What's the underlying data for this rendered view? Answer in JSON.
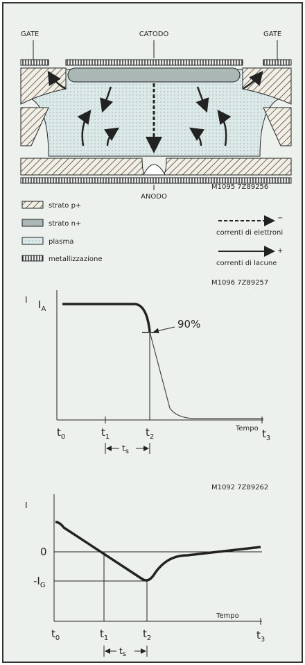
{
  "structure": {
    "gate_left": "GATE",
    "cathode": "CATODO",
    "gate_right": "GATE",
    "anode": "ANODO",
    "code": "M1095 7Z89256"
  },
  "legend": {
    "p_layer": "strato p+",
    "n_layer": "strato n+",
    "plasma": "plasma",
    "metal": "metallizzazione",
    "electrons": "correnti di elettroni",
    "electrons_sign": "−",
    "holes": "correnti di lacune",
    "holes_sign": "+"
  },
  "plot1": {
    "code": "M1096 7Z89257",
    "y_label": "I",
    "level": {
      "base": "I",
      "sub": "A"
    },
    "annotation": "90%",
    "x_title": "Tempo",
    "x_labels": [
      {
        "base": "t",
        "sub": "0"
      },
      {
        "base": "t",
        "sub": "1"
      },
      {
        "base": "t",
        "sub": "2"
      },
      {
        "base": "t",
        "sub": "3"
      }
    ],
    "interval": {
      "base": "t",
      "sub": "s"
    }
  },
  "plot2": {
    "code": "M1092 7Z89262",
    "y_label": "I",
    "zero": "0",
    "level": {
      "base": "-I",
      "sub": "G"
    },
    "x_title": "Tempo",
    "x_labels": [
      {
        "base": "t",
        "sub": "0"
      },
      {
        "base": "t",
        "sub": "1"
      },
      {
        "base": "t",
        "sub": "2"
      },
      {
        "base": "t",
        "sub": "3"
      }
    ],
    "interval": {
      "base": "t",
      "sub": "s"
    }
  }
}
